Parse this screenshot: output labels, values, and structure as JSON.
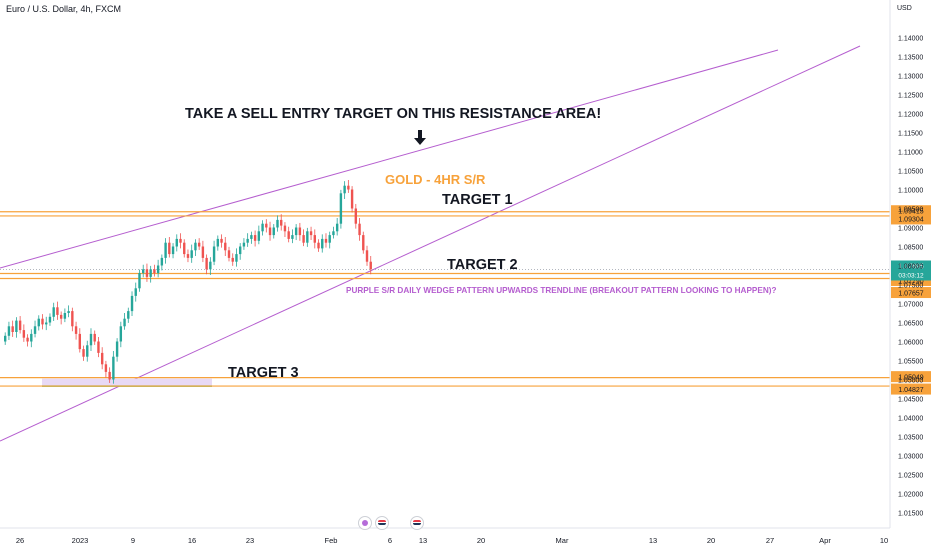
{
  "header": {
    "symbol": "Euro / U.S. Dollar, 4h, FXCM",
    "currency": "USD"
  },
  "colors": {
    "resistance_lines": "#f7a23b",
    "wedge": "#b55ecf",
    "up_candle": "#26a69a",
    "down_candle": "#ef5350",
    "last_price": "#26a69a",
    "level_label": "#f7a23b"
  },
  "annotations": {
    "sell": "TAKE A SELL ENTRY TARGET ON THIS RESISTANCE AREA!",
    "gold": "GOLD - 4HR S/R",
    "target1": "TARGET 1",
    "target2": "TARGET 2",
    "purple": "PURPLE S/R DAILY WEDGE PATTERN UPWARDS TRENDLINE (BREAKOUT PATTERN LOOKING TO HAPPEN)?",
    "target3": "TARGET 3",
    "arrow_icon": "down-arrow-icon"
  },
  "events": [
    "lightning-icon",
    "us-flag-icon",
    "us-flag-icon"
  ],
  "chart_data": {
    "type": "candlestick",
    "symbol": "EURUSD",
    "timeframe": "4h",
    "ylim": [
      1.0125,
      1.1425
    ],
    "y_ticks": [
      "1.14000",
      "1.13500",
      "1.13000",
      "1.12500",
      "1.12000",
      "1.11500",
      "1.11000",
      "1.10500",
      "1.10000",
      "1.09500",
      "1.09000",
      "1.08500",
      "1.08000",
      "1.07500",
      "1.07000",
      "1.06500",
      "1.06000",
      "1.05500",
      "1.05000",
      "1.04500",
      "1.04000",
      "1.03500",
      "1.03000",
      "1.02500",
      "1.02000",
      "1.01500"
    ],
    "x_ticks": [
      "26",
      "2023",
      "9",
      "16",
      "23",
      "Feb",
      "6",
      "13",
      "20",
      "Mar",
      "13",
      "20",
      "27",
      "Apr",
      "10"
    ],
    "levels": [
      {
        "value": 1.09415,
        "label": "1.09415"
      },
      {
        "value": 1.09304,
        "label": "1.09304"
      },
      {
        "value": 1.0779,
        "label": "1.07790"
      },
      {
        "value": 1.07657,
        "label": "1.07657"
      },
      {
        "value": 1.05049,
        "label": "1.05049"
      },
      {
        "value": 1.04827,
        "label": "1.04827"
      }
    ],
    "last_price": {
      "value": 1.07895,
      "label": "1.07895",
      "countdown": "03:03:12"
    },
    "close": [
      1.0615,
      1.064,
      1.0625,
      1.0655,
      1.063,
      1.061,
      1.06,
      1.062,
      1.064,
      1.066,
      1.0645,
      1.065,
      1.0665,
      1.069,
      1.067,
      1.066,
      1.0675,
      1.068,
      1.064,
      1.062,
      1.058,
      1.056,
      1.059,
      1.062,
      1.06,
      1.057,
      1.054,
      1.052,
      1.05,
      1.056,
      1.06,
      1.064,
      1.066,
      1.068,
      1.072,
      1.074,
      1.078,
      1.079,
      1.077,
      1.079,
      1.078,
      1.08,
      1.082,
      1.086,
      1.083,
      1.085,
      1.087,
      1.086,
      1.083,
      1.082,
      1.084,
      1.086,
      1.085,
      1.082,
      1.079,
      1.081,
      1.085,
      1.087,
      1.086,
      1.084,
      1.082,
      1.081,
      1.083,
      1.085,
      1.086,
      1.087,
      1.088,
      1.0865,
      1.089,
      1.091,
      1.09,
      1.088,
      1.09,
      1.092,
      1.0905,
      1.089,
      1.087,
      1.088,
      1.09,
      1.088,
      1.086,
      1.089,
      1.088,
      1.086,
      1.0845,
      1.087,
      1.086,
      1.088,
      1.089,
      1.091,
      1.099,
      1.101,
      1.1,
      1.095,
      1.091,
      1.088,
      1.084,
      1.081,
      1.079
    ]
  }
}
